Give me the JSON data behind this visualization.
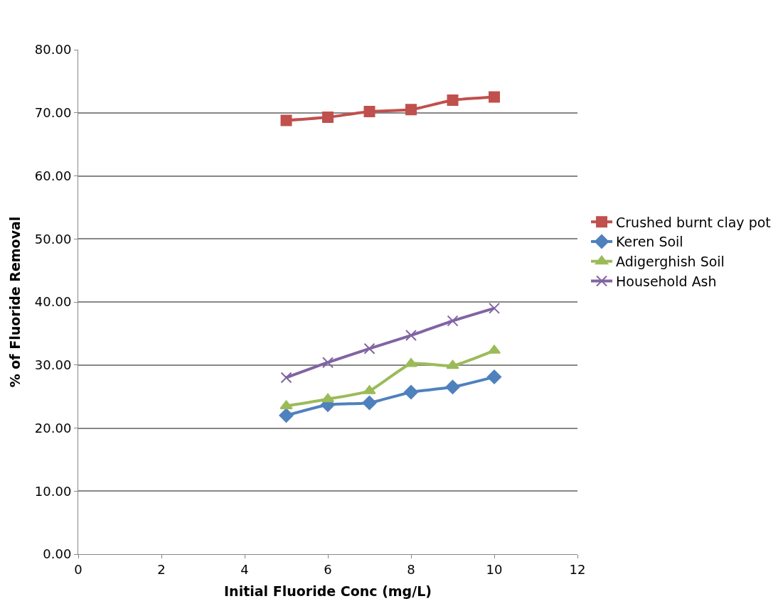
{
  "chart_data": {
    "type": "line",
    "xlabel": "Initial Fluoride Conc (mg/L)",
    "ylabel": "% of Fluoride Removal",
    "x": [
      5,
      6,
      7,
      8,
      9,
      10
    ],
    "xlim": [
      0,
      12
    ],
    "xticks": [
      0,
      2,
      4,
      6,
      8,
      10,
      12
    ],
    "ylim": [
      0,
      80
    ],
    "yticks": [
      {
        "value": 0,
        "label": "0.00"
      },
      {
        "value": 10,
        "label": "10.00"
      },
      {
        "value": 20,
        "label": "20.00"
      },
      {
        "value": 30,
        "label": "30.00"
      },
      {
        "value": 40,
        "label": "40.00"
      },
      {
        "value": 50,
        "label": "50.00"
      },
      {
        "value": 60,
        "label": "60.00"
      },
      {
        "value": 70,
        "label": "70.00"
      },
      {
        "value": 80,
        "label": "80.00"
      }
    ],
    "grid": "y",
    "legend": "right",
    "series": [
      {
        "name": "Crushed burnt clay pot",
        "color": "#c0504d",
        "marker": "square",
        "values": [
          68.8,
          69.3,
          70.2,
          70.5,
          72.0,
          72.5
        ]
      },
      {
        "name": "Keren Soil",
        "color": "#4f81bd",
        "marker": "diamond",
        "values": [
          22.0,
          23.7,
          24.0,
          25.7,
          26.5,
          28.1
        ]
      },
      {
        "name": "Adigerghish Soil",
        "color": "#9bbb59",
        "marker": "triangle",
        "values": [
          23.5,
          24.6,
          25.9,
          30.2,
          29.9,
          32.3
        ]
      },
      {
        "name": "Household Ash",
        "color": "#8064a2",
        "marker": "cross",
        "values": [
          28.0,
          30.4,
          32.6,
          34.7,
          37.0,
          39.0
        ]
      }
    ]
  }
}
